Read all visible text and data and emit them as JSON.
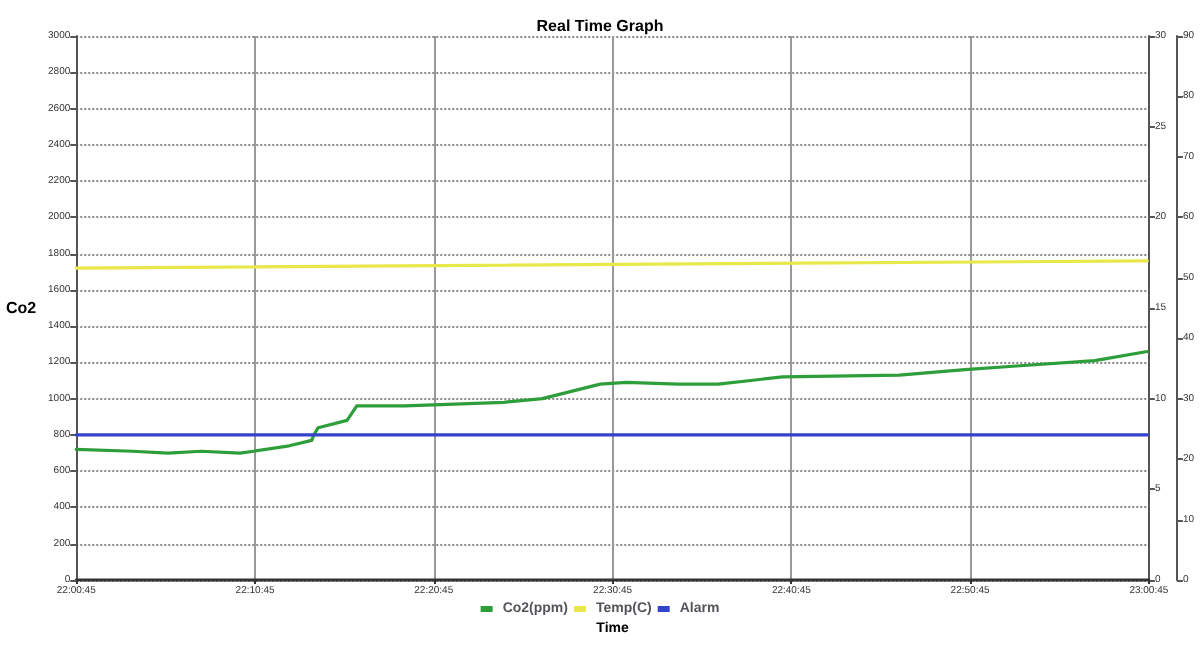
{
  "chart_data": {
    "type": "line",
    "title": "Real Time Graph",
    "xlabel": "Time",
    "ylabel": "Co2",
    "xlim": [
      22.0125,
      23.0125
    ],
    "xticks": [
      {
        "value": 22.0125,
        "label": "22:00:45"
      },
      {
        "value": 22.1792,
        "label": "22:10:45"
      },
      {
        "value": 22.3458,
        "label": "22:20:45"
      },
      {
        "value": 22.5125,
        "label": "22:30:45"
      },
      {
        "value": 22.6792,
        "label": "22:40:45"
      },
      {
        "value": 22.8458,
        "label": "22:50:45"
      },
      {
        "value": 23.0125,
        "label": "23:00:45"
      }
    ],
    "ylim": [
      0,
      3000
    ],
    "yticks": [
      0,
      200,
      400,
      600,
      800,
      1000,
      1200,
      1400,
      1600,
      1800,
      2000,
      2200,
      2400,
      2600,
      2800,
      3000
    ],
    "y2lim": [
      0,
      30
    ],
    "y2ticks": [
      0,
      5,
      10,
      15,
      20,
      25,
      30
    ],
    "y3lim": [
      0,
      90
    ],
    "y3ticks": [
      0,
      10,
      20,
      30,
      40,
      50,
      60,
      70,
      80,
      90
    ],
    "grid": true,
    "legend": "bottom",
    "marker": "none",
    "line_style": "solid",
    "series": [
      {
        "name": "Co2(ppm)",
        "color": "#2e9e3a",
        "x": [
          22.0125,
          22.065,
          22.098,
          22.129,
          22.165,
          22.178,
          22.211,
          22.232,
          22.234,
          22.238,
          22.265,
          22.274,
          22.319,
          22.411,
          22.447,
          22.501,
          22.525,
          22.574,
          22.611,
          22.671,
          22.78,
          22.841,
          22.889,
          22.962,
          23.011
        ],
        "values": [
          720,
          710,
          700,
          710,
          700,
          710,
          740,
          770,
          800,
          840,
          880,
          960,
          960,
          980,
          1000,
          1080,
          1090,
          1080,
          1080,
          1120,
          1130,
          1160,
          1180,
          1210,
          1260
        ]
      },
      {
        "name": "Temp(C)",
        "color": "#e8e84a",
        "axis": "y2",
        "x": [
          22.0125,
          23.011
        ],
        "values": [
          17.2,
          17.6
        ]
      },
      {
        "name": "Alarm",
        "color": "#3344cc",
        "x": [
          22.0125,
          23.011
        ],
        "values": [
          800,
          800
        ]
      }
    ]
  }
}
